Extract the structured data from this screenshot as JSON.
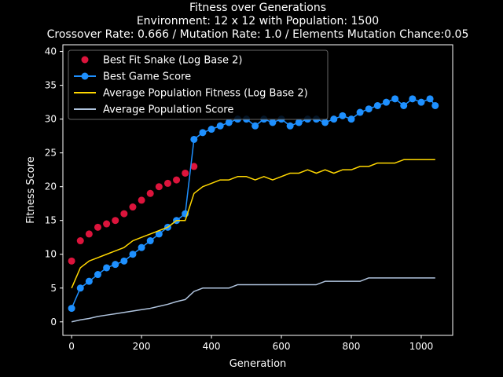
{
  "chart_data": {
    "type": "line",
    "title_lines": [
      "Fitness over Generations",
      "Environment: 12 x 12 with Population: 1500",
      "Crossover Rate: 0.666 / Mutation Rate: 1.0 / Elements Mutation Chance:0.05"
    ],
    "xlabel": "Generation",
    "ylabel": "Fitness Score",
    "xlim": [
      -25,
      1090
    ],
    "ylim": [
      -2,
      41
    ],
    "xticks": [
      0,
      200,
      400,
      600,
      800,
      1000
    ],
    "yticks": [
      0,
      5,
      10,
      15,
      20,
      25,
      30,
      35,
      40
    ],
    "grid": false,
    "legend_position": "top-left",
    "background": "#000000",
    "series": [
      {
        "name": "Best Fit Snake (Log Base 2)",
        "kind": "scatter",
        "color": "#dc143c",
        "x": [
          0,
          25,
          50,
          75,
          100,
          125,
          150,
          175,
          200,
          225,
          250,
          275,
          300,
          325,
          350
        ],
        "values": [
          9,
          12,
          13,
          14,
          14.5,
          15,
          16,
          17,
          18,
          19,
          20,
          20.5,
          21,
          22,
          23
        ]
      },
      {
        "name": "Best Game Score",
        "kind": "line-markers",
        "color": "#1e90ff",
        "x": [
          0,
          25,
          50,
          75,
          100,
          125,
          150,
          175,
          200,
          225,
          250,
          275,
          300,
          325,
          350,
          375,
          400,
          425,
          450,
          475,
          500,
          525,
          550,
          575,
          600,
          625,
          650,
          675,
          700,
          725,
          750,
          775,
          800,
          825,
          850,
          875,
          900,
          925,
          950,
          975,
          1000,
          1025,
          1040
        ],
        "values": [
          2,
          5,
          6,
          7,
          8,
          8.5,
          9,
          10,
          11,
          12,
          13,
          14,
          15,
          16,
          27,
          28,
          28.5,
          29,
          29.5,
          30,
          30,
          29,
          30,
          29.5,
          30,
          29,
          29.5,
          30,
          30,
          29.5,
          30,
          30.5,
          30,
          31,
          31.5,
          32,
          32.5,
          33,
          32,
          33,
          32.5,
          33,
          32
        ]
      },
      {
        "name": "Average Population Fitness (Log Base 2)",
        "kind": "line",
        "color": "#ffd700",
        "x": [
          0,
          25,
          50,
          75,
          100,
          125,
          150,
          175,
          200,
          225,
          250,
          275,
          300,
          325,
          350,
          375,
          400,
          425,
          450,
          475,
          500,
          525,
          550,
          575,
          600,
          625,
          650,
          675,
          700,
          725,
          750,
          775,
          800,
          825,
          850,
          875,
          900,
          925,
          950,
          975,
          1000,
          1025,
          1040
        ],
        "values": [
          5,
          8,
          9,
          9.5,
          10,
          10.5,
          11,
          12,
          12.5,
          13,
          13.5,
          14,
          15,
          15,
          19,
          20,
          20.5,
          21,
          21,
          21.5,
          21.5,
          21,
          21.5,
          21,
          21.5,
          22,
          22,
          22.5,
          22,
          22.5,
          22,
          22.5,
          22.5,
          23,
          23,
          23.5,
          23.5,
          23.5,
          24,
          24,
          24,
          24,
          24
        ]
      },
      {
        "name": "Average Population Score",
        "kind": "line",
        "color": "#b0c4de",
        "x": [
          0,
          25,
          50,
          75,
          100,
          125,
          150,
          175,
          200,
          225,
          250,
          275,
          300,
          325,
          350,
          375,
          400,
          425,
          450,
          475,
          500,
          525,
          550,
          575,
          600,
          625,
          650,
          675,
          700,
          725,
          750,
          775,
          800,
          825,
          850,
          875,
          900,
          925,
          950,
          975,
          1000,
          1025,
          1040
        ],
        "values": [
          0,
          0.3,
          0.5,
          0.8,
          1,
          1.2,
          1.4,
          1.6,
          1.8,
          2,
          2.3,
          2.6,
          3,
          3.3,
          4.5,
          5,
          5,
          5,
          5,
          5.5,
          5.5,
          5.5,
          5.5,
          5.5,
          5.5,
          5.5,
          5.5,
          5.5,
          5.5,
          6,
          6,
          6,
          6,
          6,
          6.5,
          6.5,
          6.5,
          6.5,
          6.5,
          6.5,
          6.5,
          6.5,
          6.5
        ]
      }
    ]
  }
}
